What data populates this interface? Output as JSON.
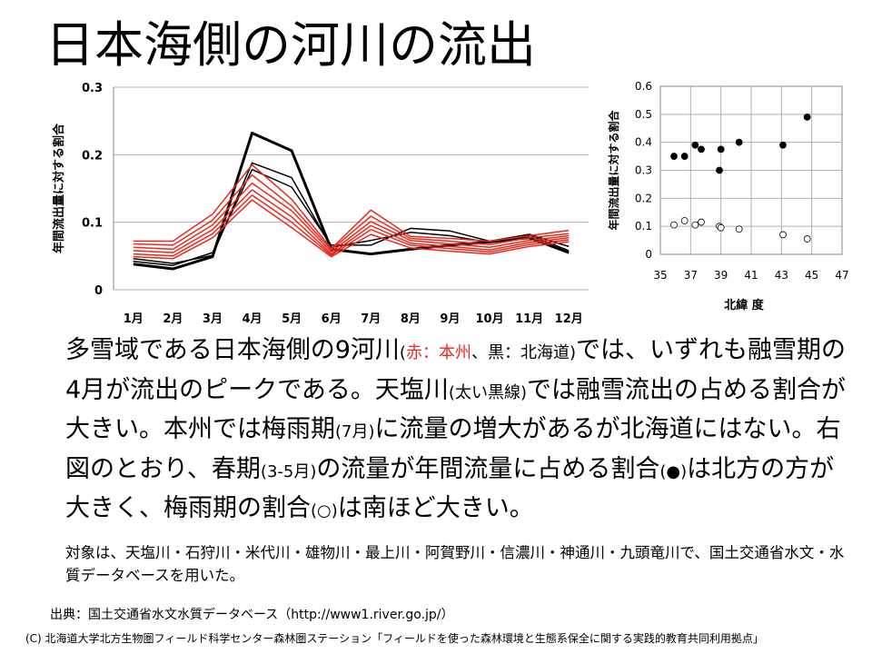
{
  "slide": {
    "title": "日本海側の河川の流出",
    "body": {
      "p1": "多雪域である日本海側の9河川",
      "p1_paren_open": "(",
      "p1_red": "赤：本州",
      "p1_black": "、黒：北海道)",
      "p2": "では、いずれも融雪期の4月が流出のピークである。天塩川",
      "p2_paren": "(太い黒線)",
      "p3": "では融雪流出の占める割合が大きい。本州では梅雨期",
      "p3_paren": "(7月)",
      "p4": "に流量の増大があるが北海道にはない。右図のとおり、春期",
      "p4_paren": "(3-5月)",
      "p5": "の流量が年間流量に占める割合",
      "p5_paren": "(●)",
      "p6": "は北方の方が大きく、梅雨期の割合",
      "p6_paren": "(○)",
      "p7": "は南ほど大きい。"
    },
    "note": "対象は、天塩川・石狩川・米代川・雄物川・最上川・阿賀野川・信濃川・神通川・九頭竜川で、国土交通省水文・水質データベースを用いた。",
    "source": "出典：国土交通省水文水質データベース（http://www1.river.go.jp/）",
    "footer": "(C) 北海道大学北方生物圏フィールド科学センター森林圏ステーション「フィールドを使った森林環境と生態系保全に関する実践的教育共同利用拠点」"
  },
  "chart_data": [
    {
      "type": "line",
      "ylabel": "年間流出量に対する割合",
      "categories": [
        "1月",
        "2月",
        "3月",
        "4月",
        "5月",
        "6月",
        "7月",
        "8月",
        "9月",
        "10月",
        "11月",
        "12月"
      ],
      "ylim": [
        0,
        0.3
      ],
      "yticks": [
        0,
        0.1,
        0.2,
        0.3
      ],
      "ytick_labels": [
        "0",
        "0.1",
        "0.2",
        "0.3"
      ],
      "series": [
        {
          "color": "#000000",
          "width": 3,
          "values": [
            0.038,
            0.031,
            0.049,
            0.232,
            0.206,
            0.06,
            0.053,
            0.06,
            0.066,
            0.071,
            0.077,
            0.055
          ]
        },
        {
          "color": "#000000",
          "width": 1.5,
          "values": [
            0.042,
            0.036,
            0.055,
            0.178,
            0.152,
            0.066,
            0.066,
            0.091,
            0.087,
            0.072,
            0.082,
            0.064
          ]
        },
        {
          "color": "#000000",
          "width": 1.5,
          "values": [
            0.046,
            0.039,
            0.051,
            0.188,
            0.166,
            0.063,
            0.073,
            0.085,
            0.08,
            0.07,
            0.081,
            0.058
          ]
        },
        {
          "color": "#e52b20",
          "width": 1.5,
          "values": [
            0.072,
            0.072,
            0.112,
            0.185,
            0.134,
            0.061,
            0.118,
            0.079,
            0.076,
            0.072,
            0.08,
            0.088
          ]
        },
        {
          "color": "#e52b20",
          "width": 1.5,
          "values": [
            0.068,
            0.066,
            0.103,
            0.17,
            0.124,
            0.059,
            0.109,
            0.076,
            0.072,
            0.067,
            0.077,
            0.083
          ]
        },
        {
          "color": "#e52b20",
          "width": 1.5,
          "values": [
            0.063,
            0.06,
            0.096,
            0.158,
            0.117,
            0.056,
            0.101,
            0.073,
            0.068,
            0.063,
            0.073,
            0.08
          ]
        },
        {
          "color": "#e52b20",
          "width": 1.5,
          "values": [
            0.058,
            0.055,
            0.089,
            0.148,
            0.108,
            0.053,
            0.095,
            0.069,
            0.064,
            0.059,
            0.07,
            0.077
          ]
        },
        {
          "color": "#e52b20",
          "width": 1.5,
          "values": [
            0.053,
            0.05,
            0.083,
            0.14,
            0.1,
            0.051,
            0.089,
            0.066,
            0.061,
            0.056,
            0.067,
            0.074
          ]
        },
        {
          "color": "#e52b20",
          "width": 1.5,
          "values": [
            0.049,
            0.046,
            0.077,
            0.133,
            0.092,
            0.049,
            0.082,
            0.062,
            0.057,
            0.053,
            0.064,
            0.071
          ]
        }
      ]
    },
    {
      "type": "scatter",
      "xlabel": "北緯 度",
      "ylabel": "年間流出量に対する割合",
      "xlim": [
        35,
        47
      ],
      "ylim": [
        0,
        0.6
      ],
      "xticks": [
        35,
        37,
        39,
        41,
        43,
        45,
        47
      ],
      "xtick_labels": [
        "35",
        "37",
        "39",
        "41",
        "43",
        "45",
        "47"
      ],
      "yticks": [
        0,
        0.1,
        0.2,
        0.3,
        0.4,
        0.5,
        0.6
      ],
      "ytick_labels": [
        "0",
        "0.1",
        "0.2",
        "0.3",
        "0.4",
        "0.5",
        "0.6"
      ],
      "series": [
        {
          "marker": "filled",
          "x": [
            35.9,
            36.6,
            37.3,
            37.7,
            38.9,
            39.0,
            40.2,
            43.1,
            44.7
          ],
          "y": [
            0.35,
            0.35,
            0.39,
            0.375,
            0.3,
            0.375,
            0.4,
            0.39,
            0.49
          ]
        },
        {
          "marker": "open",
          "x": [
            35.9,
            36.6,
            37.3,
            37.7,
            38.9,
            39.0,
            40.2,
            43.1,
            44.7
          ],
          "y": [
            0.105,
            0.12,
            0.105,
            0.115,
            0.1,
            0.095,
            0.09,
            0.07,
            0.055
          ]
        }
      ]
    }
  ]
}
